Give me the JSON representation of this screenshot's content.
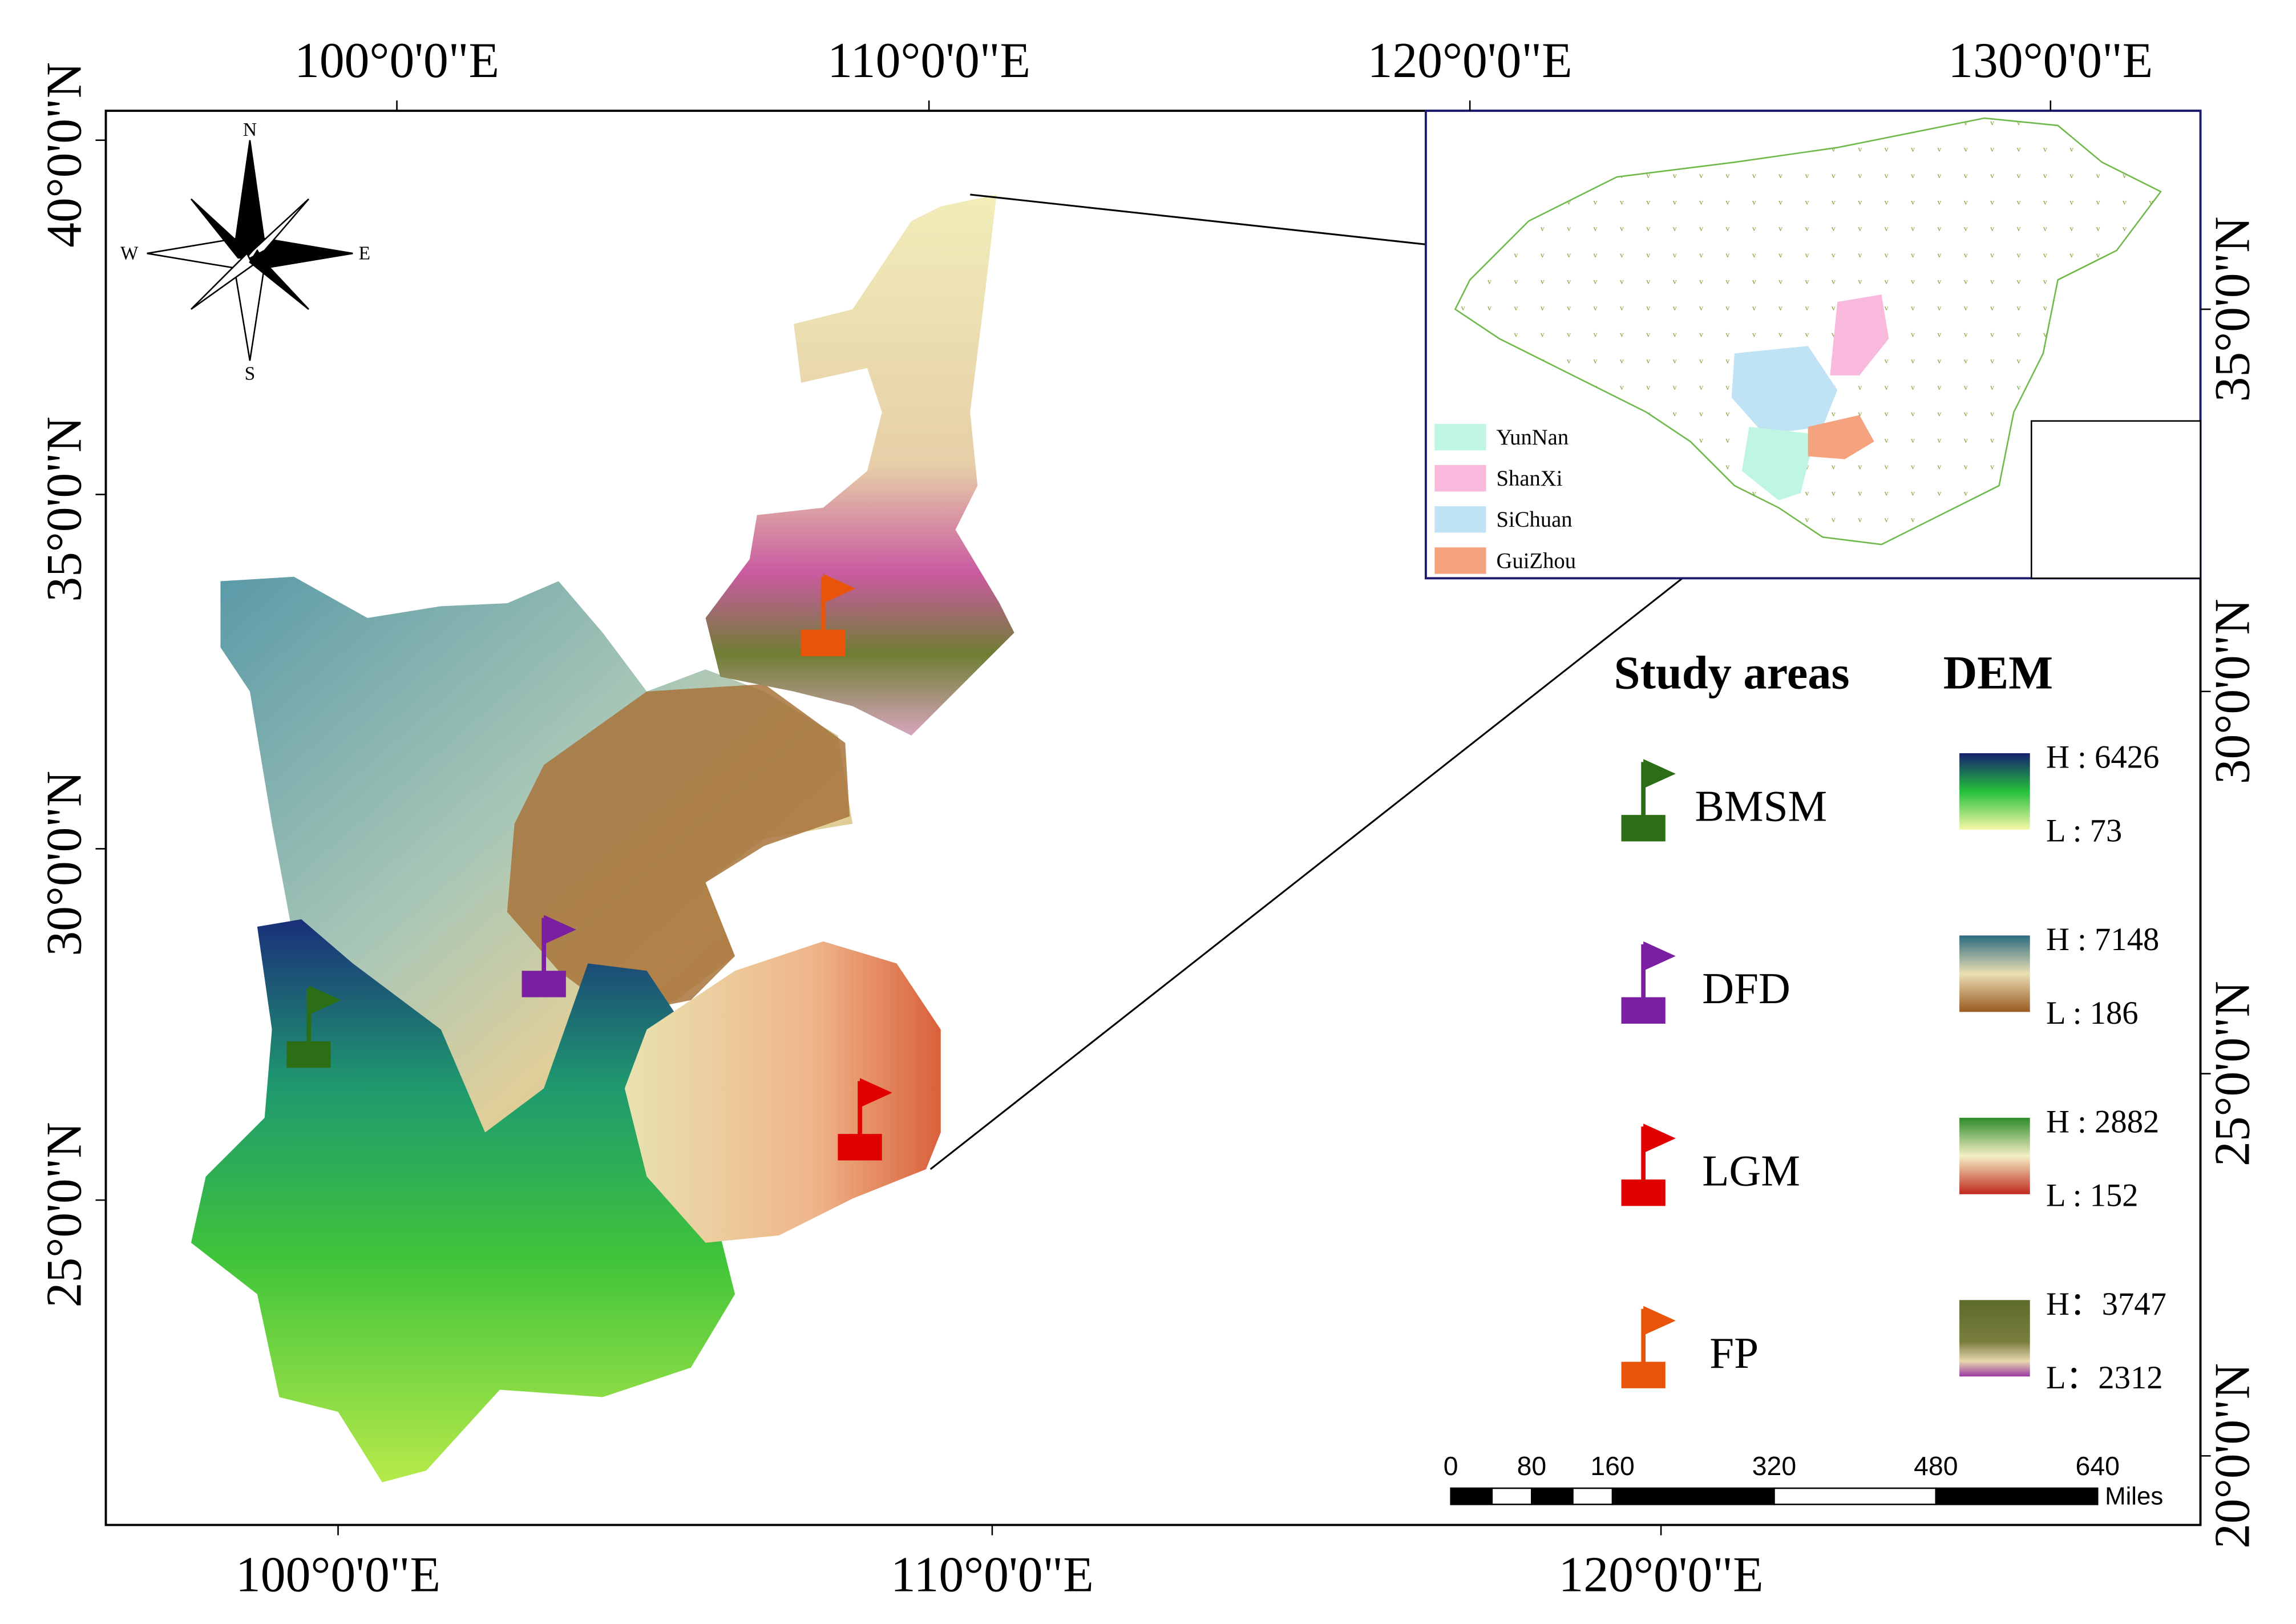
{
  "map": {
    "top_axis_labels": [
      "100°0'0\"E",
      "110°0'0\"E",
      "120°0'0\"E",
      "130°0'0\"E"
    ],
    "bottom_axis_labels": [
      "100°0'0\"E",
      "110°0'0\"E",
      "120°0'0\"E"
    ],
    "left_axis_labels": [
      "40°0'0\"N",
      "35°0'0\"N",
      "30°0'0\"N",
      "25°0'0\"N"
    ],
    "right_axis_labels": [
      "35°0'0\"N",
      "30°0'0\"N",
      "25°0'0\"N",
      "20°0'0\"N"
    ],
    "compass": [
      "N",
      "E",
      "S",
      "W"
    ],
    "inset_legend": [
      "YunNan",
      "ShanXi",
      "SiChuan",
      "GuiZhou"
    ],
    "legend": {
      "study_areas_title": "Study areas",
      "dem_title": "DEM",
      "items": [
        {
          "name": "BMSM",
          "high": "H : 6426",
          "low": "L : 73"
        },
        {
          "name": "DFD",
          "high": "H : 7148",
          "low": "L : 186"
        },
        {
          "name": "LGM",
          "high": "H : 2882",
          "low": "L : 152"
        },
        {
          "name": "FP",
          "high": "H：3747",
          "low": "L：2312"
        }
      ]
    },
    "scale_bar": {
      "labels": [
        "0",
        "80",
        "160",
        "320",
        "480",
        "640"
      ],
      "unit": "Miles"
    }
  }
}
